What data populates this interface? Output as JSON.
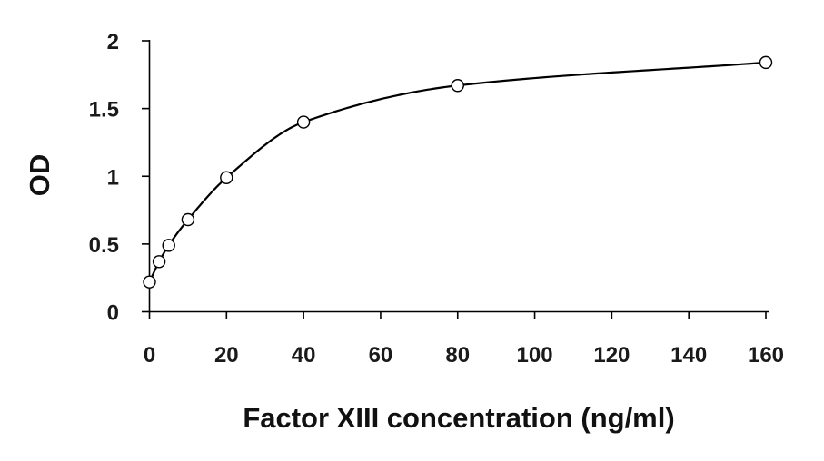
{
  "chart_data": {
    "type": "scatter",
    "title": "",
    "xlabel": "Factor XIII concentration (ng/ml)",
    "ylabel": "OD",
    "xlim": [
      0,
      160
    ],
    "ylim": [
      0,
      2
    ],
    "xticks": [
      0,
      20,
      40,
      60,
      80,
      100,
      120,
      140,
      160
    ],
    "yticks": [
      0,
      0.5,
      1,
      1.5,
      2
    ],
    "xtick_labels": [
      "0",
      "20",
      "40",
      "60",
      "80",
      "100",
      "120",
      "140",
      "160"
    ],
    "ytick_labels": [
      "0",
      "0.5",
      "1",
      "1.5",
      "2"
    ],
    "grid": false,
    "legend": "none",
    "series": [
      {
        "x": [
          0,
          2.5,
          5,
          10,
          20,
          40,
          80,
          160
        ],
        "y": [
          0.22,
          0.37,
          0.49,
          0.68,
          0.99,
          1.4,
          1.67,
          1.84
        ],
        "marker": "open-circle",
        "fit_line": "smooth curve"
      }
    ],
    "colors": {
      "line": "#000000",
      "marker_fill": "#ffffff",
      "marker_stroke": "#000000",
      "axis": "#000000"
    }
  }
}
